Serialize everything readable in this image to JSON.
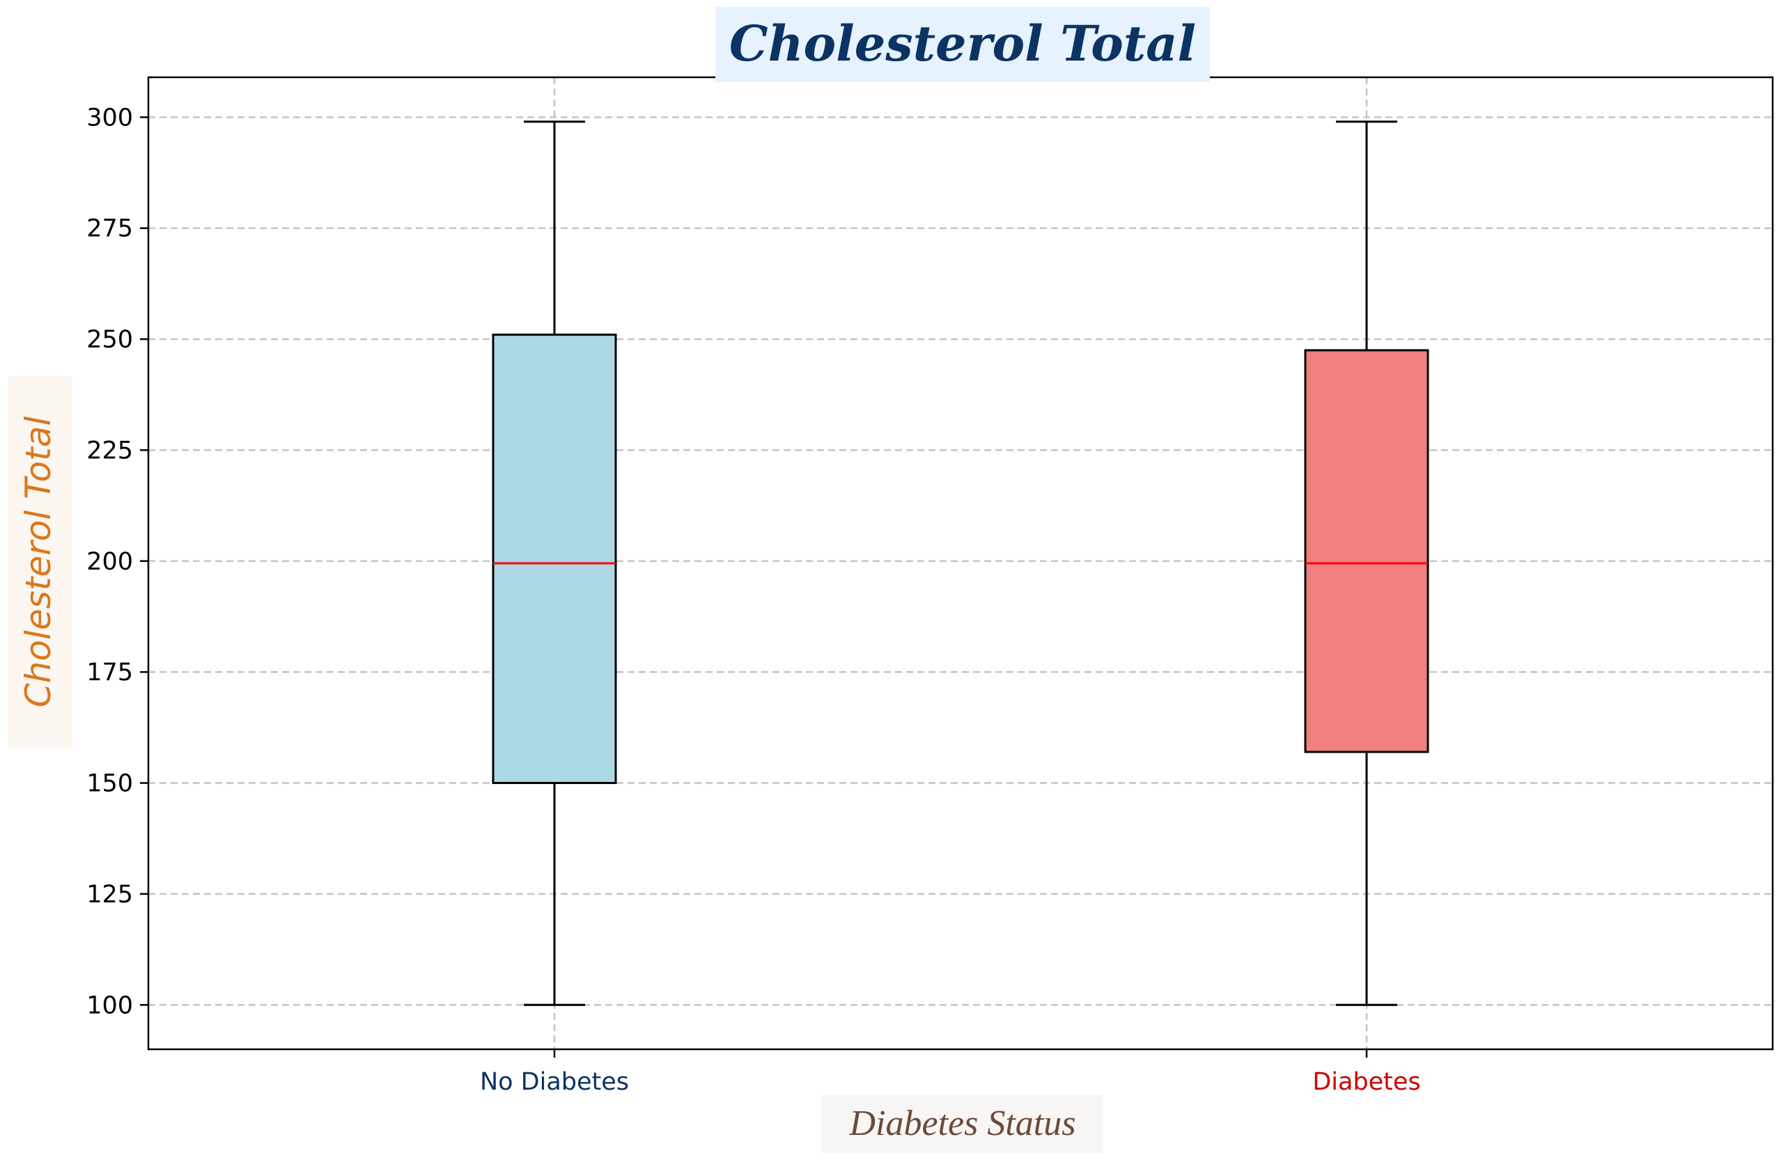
{
  "chart_data": {
    "type": "box",
    "title": "Cholesterol Total",
    "xlabel": "Diabetes Status",
    "ylabel": "Cholesterol Total",
    "ylim": [
      90,
      309
    ],
    "yticks": [
      100,
      125,
      150,
      175,
      200,
      225,
      250,
      275,
      300
    ],
    "grid": true,
    "categories": [
      "No Diabetes",
      "Diabetes"
    ],
    "series": [
      {
        "name": "No Diabetes",
        "whisker_low": 100,
        "q1": 150,
        "median": 199.5,
        "q3": 251,
        "whisker_high": 299,
        "fill_color": "#add8e6",
        "label_color": "#0b3363"
      },
      {
        "name": "Diabetes",
        "whisker_low": 100,
        "q1": 157,
        "median": 199.5,
        "q3": 247.5,
        "whisker_high": 299,
        "fill_color": "#f08080",
        "label_color": "#cc0000"
      }
    ],
    "colors": {
      "median": "#ff0000",
      "grid": "#c4c4c4",
      "title_bg": "#e6f2fd",
      "ylabel_bg": "#fcf6f0",
      "xlabel_bg": "#f8f6f4"
    }
  }
}
